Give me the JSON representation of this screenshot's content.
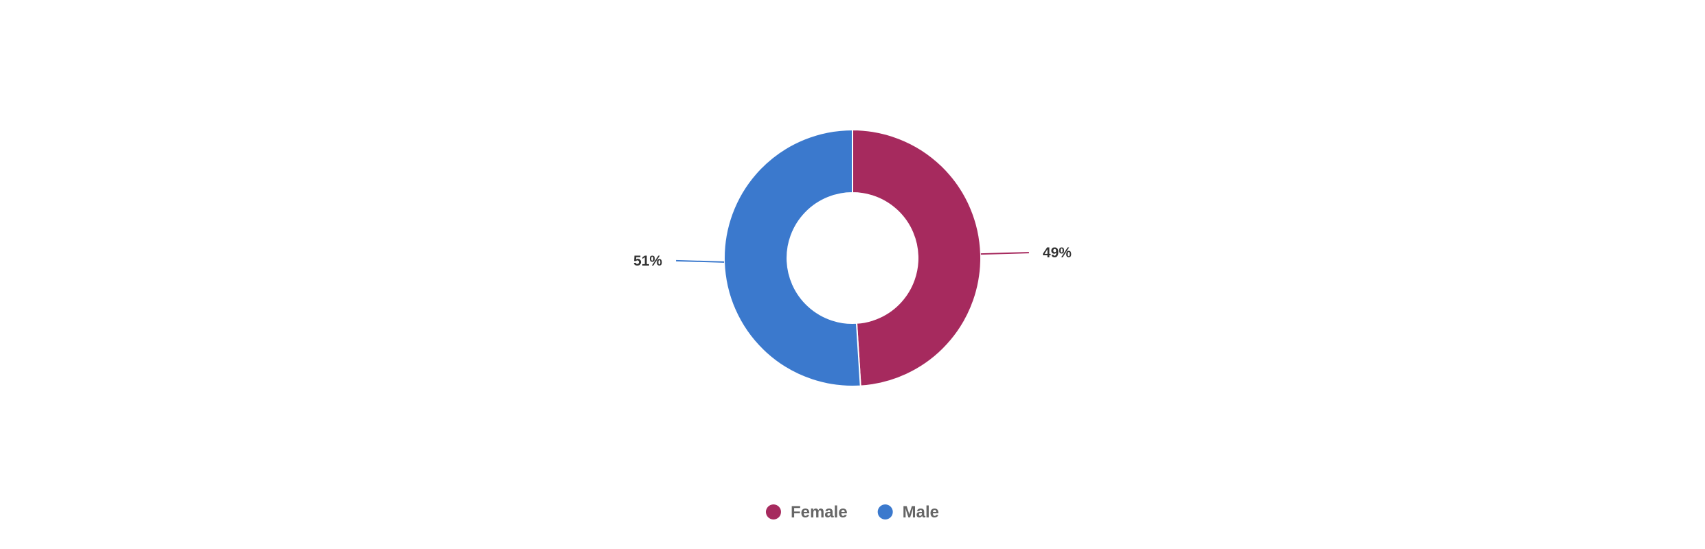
{
  "chart_data": {
    "type": "pie",
    "title": "",
    "categories": [
      "Female",
      "Male"
    ],
    "values": [
      49,
      51
    ],
    "data_labels": [
      "49%",
      "51%"
    ],
    "colors": [
      "#a62a5e",
      "#3b79cd"
    ],
    "donut": true,
    "legend": {
      "position": "bottom-center",
      "items": [
        "Female",
        "Male"
      ]
    },
    "grid": false
  }
}
